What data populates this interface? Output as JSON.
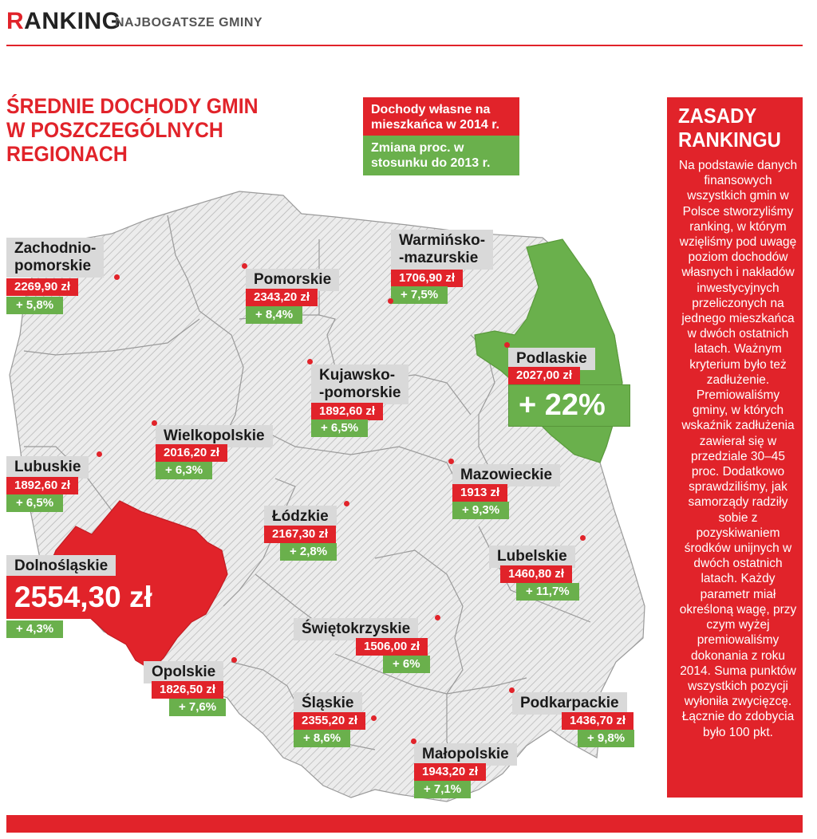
{
  "header": {
    "brand_first": "R",
    "brand_rest": "ANKING",
    "subtitle": "NAJBOGATSZE GMINY"
  },
  "title_line1": "ŚREDNIE DOCHODY GMIN",
  "title_line2": "W POSZCZEGÓLNYCH REGIONACH",
  "legend": {
    "income": "Dochody własne na mieszkańca w 2014 r.",
    "change": "Zmiana proc. w stosunku do 2013 r.",
    "income_color": "#e1232a",
    "change_color": "#6ab04c"
  },
  "regions": {
    "zachodniopomorskie": {
      "name_1": "Zachodnio-",
      "name_2": "pomorskie",
      "value": "2269,90 zł",
      "change": "+ 5,8%"
    },
    "pomorskie": {
      "name": "Pomorskie",
      "value": "2343,20 zł",
      "change": "+ 8,4%"
    },
    "warminsko": {
      "name_1": "Warmińsko-",
      "name_2": "-mazurskie",
      "value": "1706,90 zł",
      "change": "+ 7,5%"
    },
    "podlaskie": {
      "name": "Podlaskie",
      "value": "2027,00 zł",
      "change": "+ 22%"
    },
    "kujawsko": {
      "name_1": "Kujawsko-",
      "name_2": "-pomorskie",
      "value": "1892,60 zł",
      "change": "+ 6,5%"
    },
    "wielkopolskie": {
      "name": "Wielkopolskie",
      "value": "2016,20 zł",
      "change": "+ 6,3%"
    },
    "lubuskie": {
      "name": "Lubuskie",
      "value": "1892,60 zł",
      "change": "+ 6,5%"
    },
    "mazowieckie": {
      "name": "Mazowieckie",
      "value": "1913 zł",
      "change": "+ 9,3%"
    },
    "lodzkie": {
      "name": "Łódzkie",
      "value": "2167,30 zł",
      "change": "+ 2,8%"
    },
    "lubelskie": {
      "name": "Lubelskie",
      "value": "1460,80 zł",
      "change": "+ 11,7%"
    },
    "dolnoslaskie": {
      "name": "Dolnośląskie",
      "value": "2554,30 zł",
      "change": "+ 4,3%"
    },
    "swietokrzyskie": {
      "name": "Świętokrzyskie",
      "value": "1506,00 zł",
      "change": "+ 6%"
    },
    "opolskie": {
      "name": "Opolskie",
      "value": "1826,50 zł",
      "change": "+ 7,6%"
    },
    "slaskie": {
      "name": "Śląskie",
      "value": "2355,20 zł",
      "change": "+ 8,6%"
    },
    "podkarpackie": {
      "name": "Podkarpackie",
      "value": "1436,70 zł",
      "change": "+ 9,8%"
    },
    "malopolskie": {
      "name": "Małopolskie",
      "value": "1943,20 zł",
      "change": "+ 7,1%"
    }
  },
  "highlight": {
    "top_income_region": "Dolnośląskie",
    "top_change_region": "Podlaskie"
  },
  "sidebar": {
    "title_1": "ZASADY",
    "title_2": "RANKINGU",
    "body": "Na podstawie danych finansowych wszystkich gmin w Polsce stworzyliśmy ranking, w którym wzięliśmy pod uwagę poziom dochodów własnych i nakładów inwestycyjnych przeliczonych na jednego mieszkańca w dwóch ostatnich latach. Ważnym kryterium było też zadłużenie. Premiowaliśmy gminy, w których wskaźnik zadłużenia zawierał się w przedziale 30–45 proc. Dodatkowo sprawdziliśmy, jak samorządy radziły sobie z pozyskiwaniem środków unijnych w dwóch ostatnich latach. Każdy parametr miał określoną wagę, przy czym wyżej premiowaliśmy dokonania z roku 2014. Suma punktów wszystkich pozycji wyłoniła zwycięzcę. Łącznie do zdobycia było 100 pkt."
  }
}
